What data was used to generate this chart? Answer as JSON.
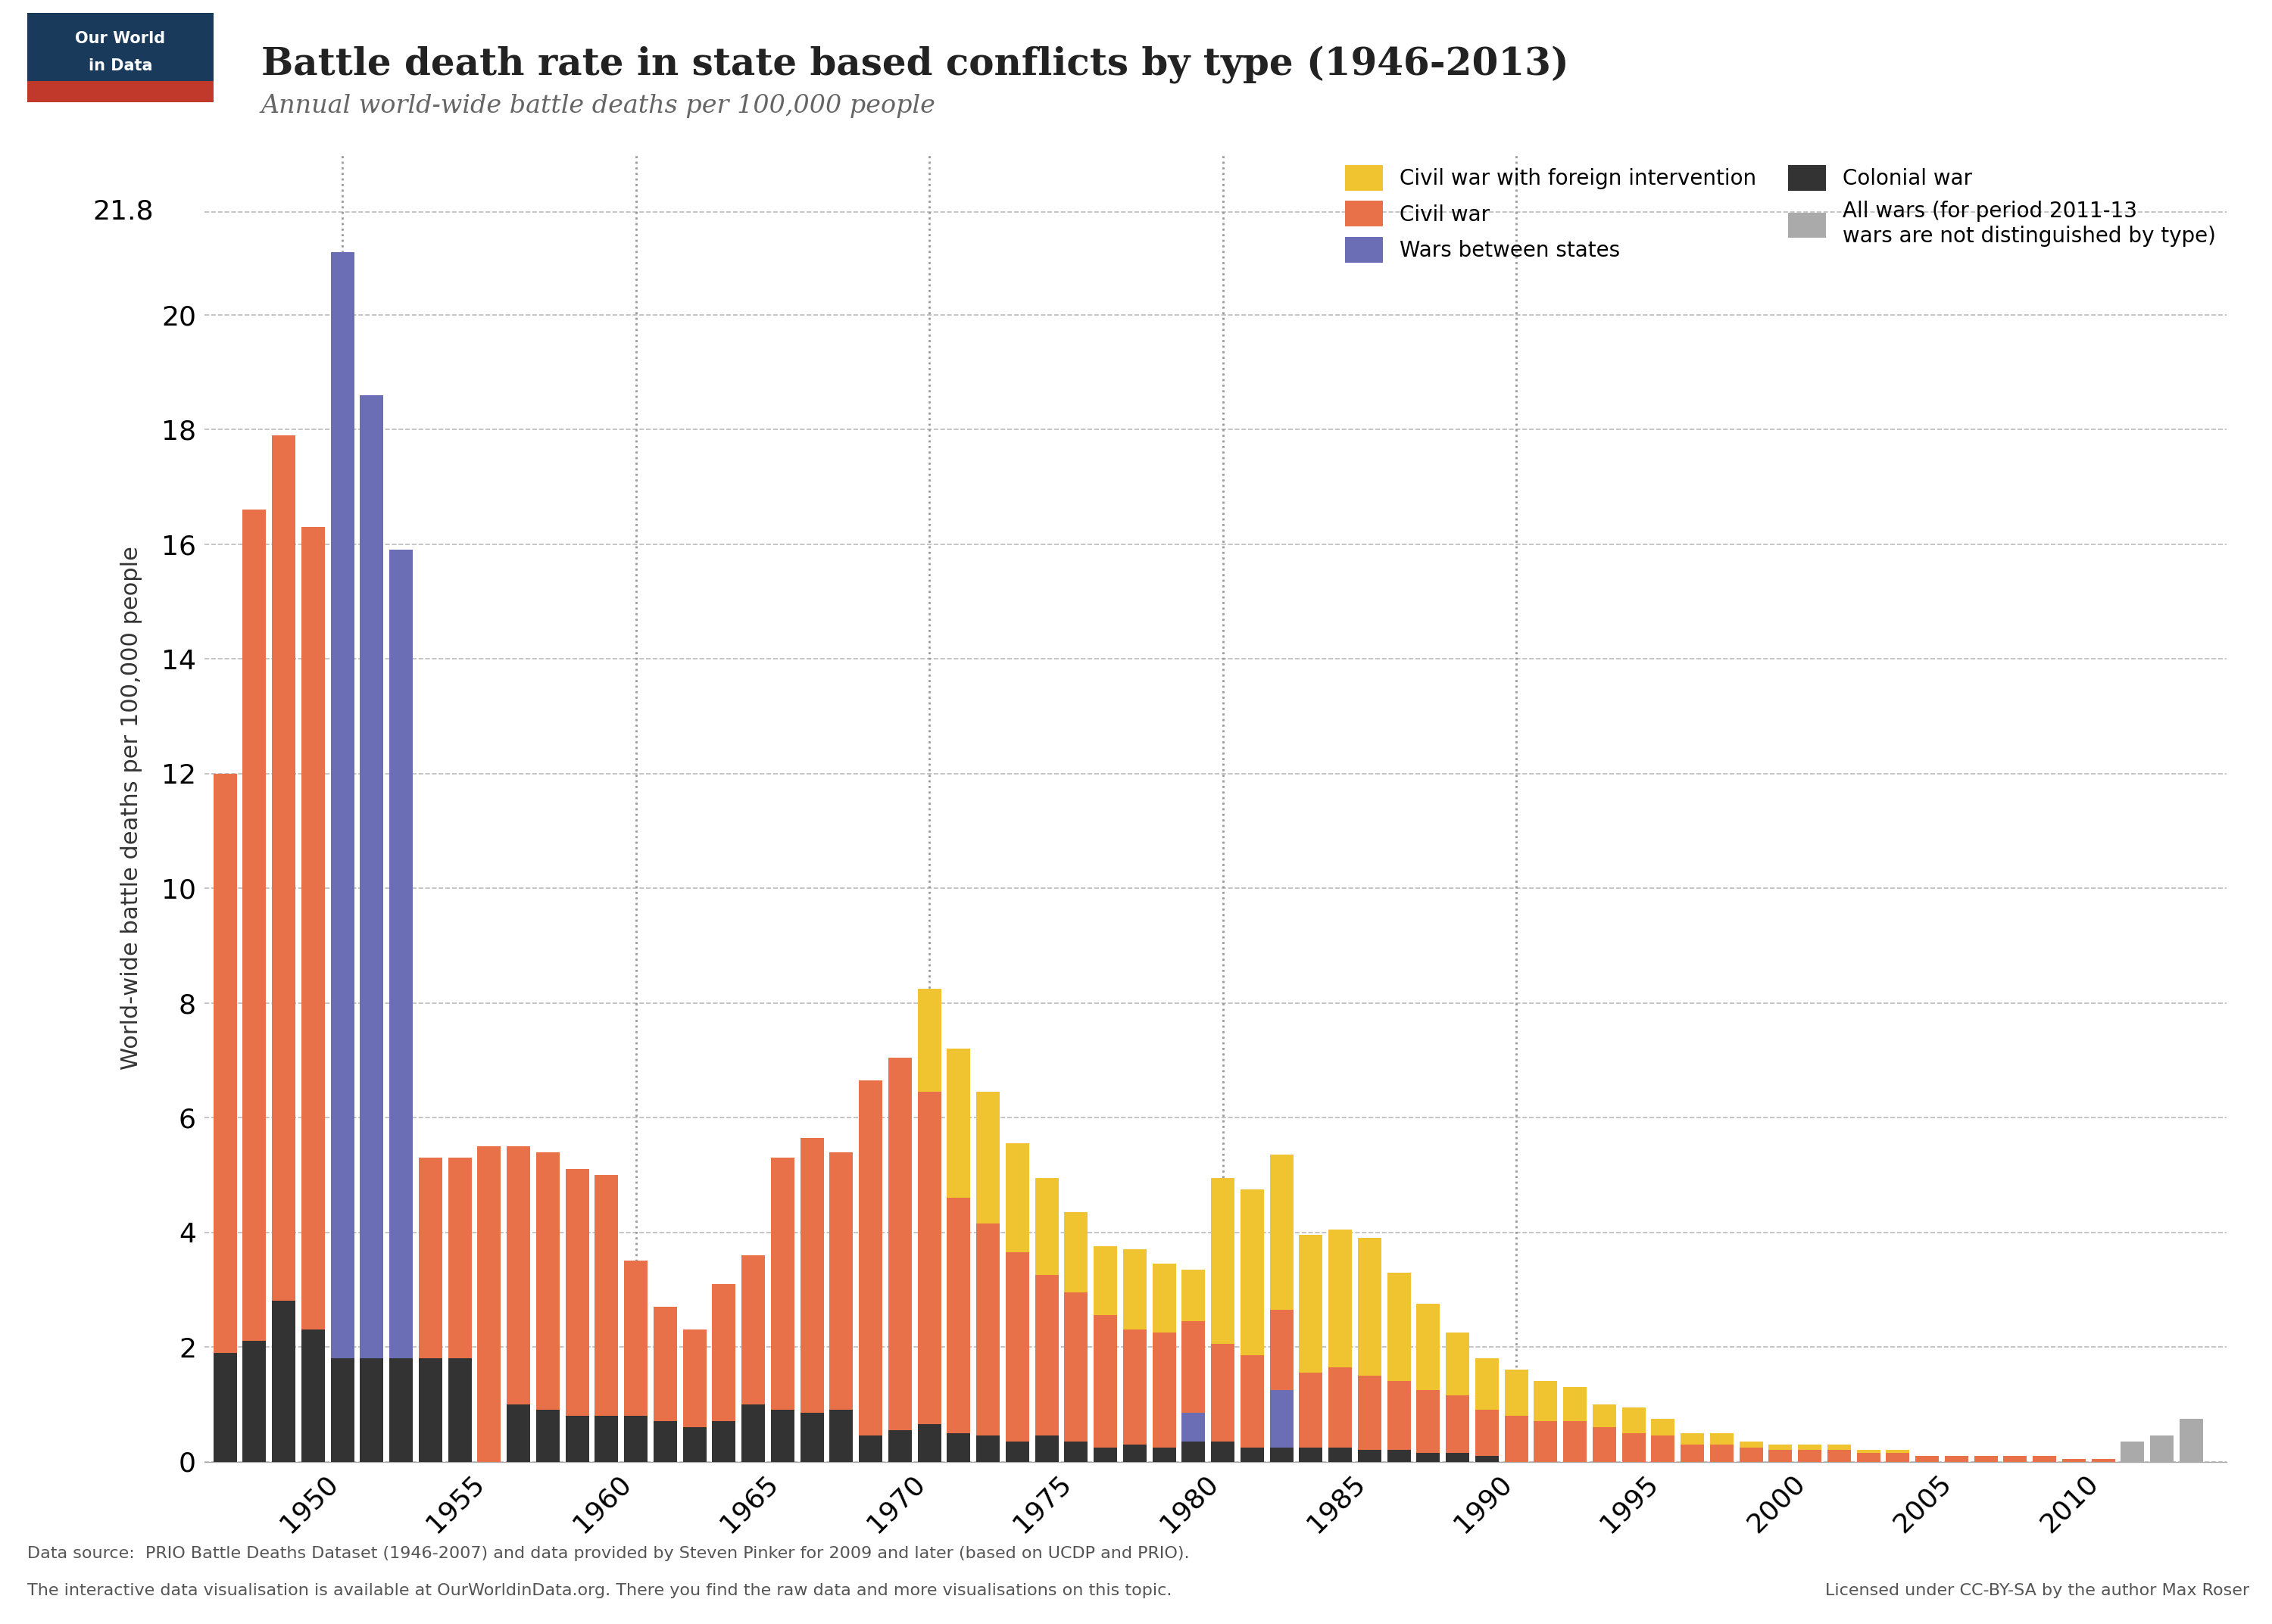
{
  "title": "Battle death rate in state based conflicts by type (1946-2013)",
  "subtitle": "Annual world-wide battle deaths per 100,000 people",
  "ylabel": "World-wide battle deaths per 100,000 people",
  "colors": {
    "civil_war_foreign": "#F0C330",
    "civil_war": "#E8714A",
    "wars_between_states": "#6B6DB5",
    "colonial_war": "#333333",
    "all_wars": "#AAAAAA"
  },
  "yticks": [
    0,
    2,
    4,
    6,
    8,
    10,
    12,
    14,
    16,
    18,
    20
  ],
  "ylim": [
    0,
    22.8
  ],
  "logo_color_top": "#1a3a5c",
  "logo_color_bottom": "#c0392b",
  "background_color": "#ffffff",
  "grid_color": "#bbbbbb",
  "source_text": "Data source:  PRIO Battle Deaths Dataset (1946-2007) and data provided by Steven Pinker for 2009 and later (based on UCDP and PRIO).",
  "interactive_text": "The interactive data visualisation is available at OurWorldinData.org. There you find the raw data and more visualisations on this topic.",
  "license_text": "Licensed under CC-BY-SA by the author Max Roser",
  "colonial_war": [
    1.9,
    2.1,
    2.8,
    2.3,
    1.8,
    1.8,
    1.8,
    1.8,
    1.8,
    0.0,
    1.0,
    0.9,
    0.8,
    0.8,
    0.8,
    0.7,
    0.6,
    0.7,
    1.0,
    0.9,
    0.85,
    0.9,
    0.45,
    0.55,
    0.65,
    0.5,
    0.45,
    0.35,
    0.45,
    0.35,
    0.25,
    0.3,
    0.25,
    0.35,
    0.35,
    0.25,
    0.25,
    0.25,
    0.25,
    0.2,
    0.2,
    0.15,
    0.15,
    0.1,
    0.0,
    0.0,
    0.0,
    0.0,
    0.0,
    0.0,
    0.0,
    0.0,
    0.0,
    0.0,
    0.0,
    0.0,
    0.0,
    0.0,
    0.0,
    0.0,
    0.0,
    0.0,
    0.0,
    0.0,
    0.0,
    0.0,
    0.0,
    0.0
  ],
  "wars_between_states": [
    0.0,
    0.0,
    0.0,
    0.0,
    19.3,
    16.8,
    14.1,
    0.0,
    0.0,
    0.0,
    0.0,
    0.0,
    0.0,
    0.0,
    0.0,
    0.0,
    0.0,
    0.0,
    0.0,
    0.0,
    0.0,
    0.0,
    0.0,
    0.0,
    0.0,
    0.0,
    0.0,
    0.0,
    0.0,
    0.0,
    0.0,
    0.0,
    0.0,
    0.5,
    0.0,
    0.0,
    1.0,
    0.0,
    0.0,
    0.0,
    0.0,
    0.0,
    0.0,
    0.0,
    0.0,
    0.0,
    0.0,
    0.0,
    0.0,
    0.0,
    0.0,
    0.0,
    0.0,
    0.0,
    0.0,
    0.0,
    0.0,
    0.0,
    0.0,
    0.0,
    0.0,
    0.0,
    0.0,
    0.0,
    0.0,
    0.0,
    0.0,
    0.0
  ],
  "civil_war": [
    10.1,
    14.5,
    15.1,
    14.0,
    0.0,
    0.0,
    0.0,
    3.5,
    3.5,
    5.5,
    4.5,
    4.5,
    4.3,
    4.2,
    2.7,
    2.0,
    1.7,
    2.4,
    2.6,
    4.4,
    4.8,
    4.5,
    6.2,
    6.5,
    5.8,
    4.1,
    3.7,
    3.3,
    2.8,
    2.6,
    2.3,
    2.0,
    2.0,
    1.6,
    1.7,
    1.6,
    1.4,
    1.3,
    1.4,
    1.3,
    1.2,
    1.1,
    1.0,
    0.8,
    0.8,
    0.7,
    0.7,
    0.6,
    0.5,
    0.45,
    0.3,
    0.3,
    0.25,
    0.2,
    0.2,
    0.2,
    0.15,
    0.15,
    0.1,
    0.1,
    0.1,
    0.1,
    0.1,
    0.05,
    0.05,
    0.0,
    0.0,
    0.0
  ],
  "civil_war_foreign": [
    0.0,
    0.0,
    0.0,
    0.0,
    0.0,
    0.0,
    0.0,
    0.0,
    0.0,
    0.0,
    0.0,
    0.0,
    0.0,
    0.0,
    0.0,
    0.0,
    0.0,
    0.0,
    0.0,
    0.0,
    0.0,
    0.0,
    0.0,
    0.0,
    1.8,
    2.6,
    2.3,
    1.9,
    1.7,
    1.4,
    1.2,
    1.4,
    1.2,
    0.9,
    2.9,
    2.9,
    2.7,
    2.4,
    2.4,
    2.4,
    1.9,
    1.5,
    1.1,
    0.9,
    0.8,
    0.7,
    0.6,
    0.4,
    0.45,
    0.3,
    0.2,
    0.2,
    0.1,
    0.1,
    0.1,
    0.1,
    0.05,
    0.05,
    0.0,
    0.0,
    0.0,
    0.0,
    0.0,
    0.0,
    0.0,
    0.0,
    0.0,
    0.0
  ],
  "all_wars": [
    0.0,
    0.0,
    0.0,
    0.0,
    0.0,
    0.0,
    0.0,
    0.0,
    0.0,
    0.0,
    0.0,
    0.0,
    0.0,
    0.0,
    0.0,
    0.0,
    0.0,
    0.0,
    0.0,
    0.0,
    0.0,
    0.0,
    0.0,
    0.0,
    0.0,
    0.0,
    0.0,
    0.0,
    0.0,
    0.0,
    0.0,
    0.0,
    0.0,
    0.0,
    0.0,
    0.0,
    0.0,
    0.0,
    0.0,
    0.0,
    0.0,
    0.0,
    0.0,
    0.0,
    0.0,
    0.0,
    0.0,
    0.0,
    0.0,
    0.0,
    0.0,
    0.0,
    0.0,
    0.0,
    0.0,
    0.0,
    0.0,
    0.0,
    0.0,
    0.0,
    0.0,
    0.0,
    0.0,
    0.0,
    0.0,
    0.35,
    0.45,
    0.75
  ]
}
